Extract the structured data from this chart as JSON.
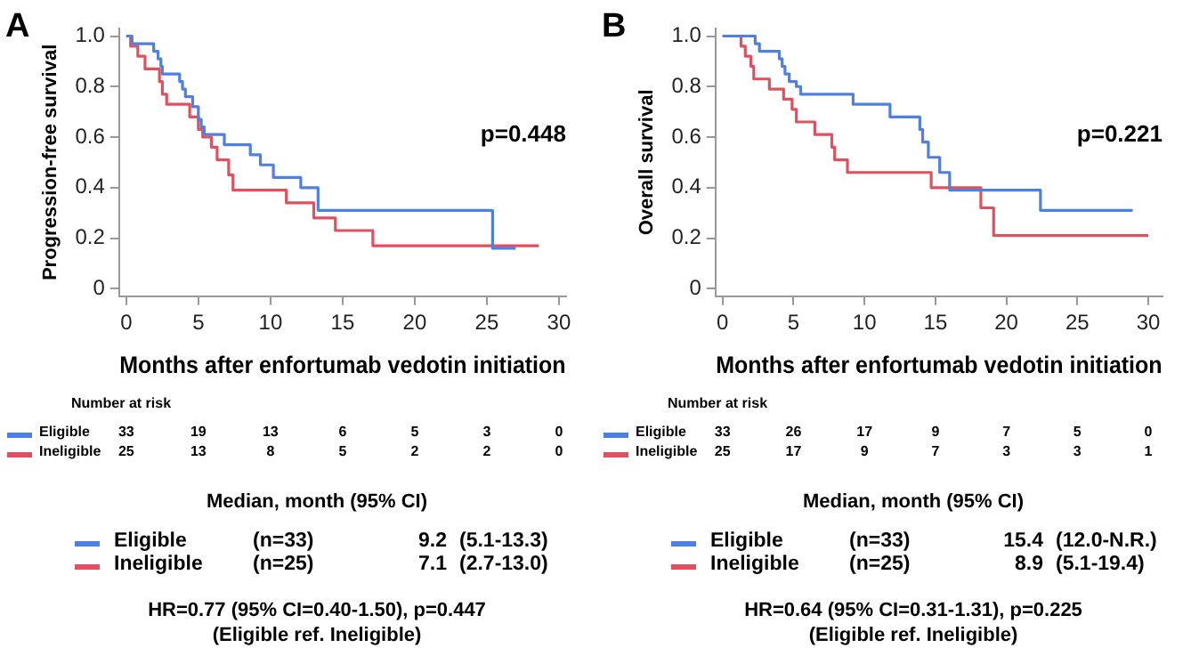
{
  "chart_data": [
    {
      "type": "step",
      "title": "A",
      "legend": "bottom left",
      "xlabel": "Months after enfortumab vedotin initiation",
      "ylabel": "Progression-free survival",
      "xlim": [
        -0.5,
        30.5
      ],
      "xticks": [
        0,
        5,
        10,
        15,
        20,
        25,
        30
      ],
      "ylim": [
        -0.03,
        1.03
      ],
      "yticks": [
        {
          "value": 0,
          "label": "0"
        },
        {
          "value": 0.2,
          "label": "0.2"
        },
        {
          "value": 0.4,
          "label": "0.4"
        },
        {
          "value": 0.6,
          "label": "0.6"
        },
        {
          "value": 0.8,
          "label": "0.8"
        },
        {
          "value": 1,
          "label": "1.0"
        }
      ],
      "series": [
        {
          "name": "Eligible",
          "color": "#4f7fe0",
          "x": [
            0,
            0.4,
            1.9,
            2.2,
            2.4,
            2.5,
            3.7,
            3.9,
            4.1,
            4.6,
            5.0,
            5.2,
            5.4,
            6.8,
            8.6,
            9.3,
            10.2,
            12.1,
            13.3,
            25.4,
            27.0
          ],
          "values": [
            1.0,
            0.97,
            0.94,
            0.91,
            0.88,
            0.85,
            0.82,
            0.79,
            0.76,
            0.72,
            0.67,
            0.64,
            0.61,
            0.57,
            0.53,
            0.49,
            0.44,
            0.4,
            0.31,
            0.16,
            0.16
          ]
        },
        {
          "name": "Ineligible",
          "color": "#e0505e",
          "x": [
            0,
            0.3,
            0.8,
            1.3,
            2.3,
            2.5,
            2.8,
            4.4,
            5.0,
            5.3,
            5.9,
            6.3,
            7.1,
            7.4,
            11.1,
            13.0,
            14.5,
            17.1,
            28.6
          ],
          "values": [
            1.0,
            0.96,
            0.92,
            0.87,
            0.82,
            0.77,
            0.73,
            0.68,
            0.63,
            0.6,
            0.56,
            0.51,
            0.45,
            0.39,
            0.34,
            0.28,
            0.23,
            0.17,
            0.17
          ]
        }
      ],
      "annotations": [
        "p=0.448",
        "Number at risk",
        "33 19 13 6 5 3 0",
        "25 13 8 5 2 2 0",
        "Median, month (95% CI)",
        "(n=33)",
        "9.2",
        "(5.1-13.3)",
        "(n=25)",
        "7.1",
        "(2.7-13.0)",
        "HR=0.77 (95% CI=0.40-1.50), p=0.447",
        "(Eligible ref. Ineligible)"
      ]
    },
    {
      "type": "step",
      "title": "B",
      "legend": "bottom left",
      "xlabel": "Months after enfortumab vedotin initiation",
      "ylabel": "Overall survival",
      "xlim": [
        -0.5,
        31
      ],
      "xticks": [
        0,
        5,
        10,
        15,
        20,
        25,
        30
      ],
      "ylim": [
        -0.03,
        1.03
      ],
      "yticks": [
        {
          "value": 0,
          "label": "0"
        },
        {
          "value": 0.2,
          "label": "0.2"
        },
        {
          "value": 0.4,
          "label": "0.4"
        },
        {
          "value": 0.6,
          "label": "0.6"
        },
        {
          "value": 0.8,
          "label": "0.8"
        },
        {
          "value": 1,
          "label": "1.0"
        }
      ],
      "series": [
        {
          "name": "Eligible",
          "color": "#4f7fe0",
          "x": [
            0,
            2.3,
            2.6,
            4.0,
            4.2,
            4.4,
            4.7,
            5.2,
            5.5,
            9.2,
            11.8,
            13.9,
            14.1,
            14.5,
            15.3,
            16.0,
            22.4,
            28.9
          ],
          "values": [
            1.0,
            0.97,
            0.94,
            0.91,
            0.88,
            0.85,
            0.82,
            0.8,
            0.77,
            0.73,
            0.68,
            0.63,
            0.58,
            0.52,
            0.46,
            0.39,
            0.31,
            0.31
          ]
        },
        {
          "name": "Ineligible",
          "color": "#e0505e",
          "x": [
            0,
            1.3,
            1.6,
            2.0,
            2.2,
            3.3,
            4.3,
            4.9,
            5.2,
            6.5,
            7.7,
            7.9,
            8.8,
            14.7,
            18.2,
            19.1,
            30.0
          ],
          "values": [
            1.0,
            0.96,
            0.92,
            0.88,
            0.83,
            0.79,
            0.75,
            0.71,
            0.66,
            0.61,
            0.56,
            0.51,
            0.46,
            0.4,
            0.32,
            0.21,
            0.21
          ]
        }
      ],
      "annotations": [
        "p=0.221",
        "Number at risk",
        "33 26 17 9 7 5 0",
        "25 17 9 7 3 3 1",
        "Median, month (95% CI)",
        "(n=33)",
        "15.4",
        "(12.0-N.R.)",
        "(n=25)",
        "8.9",
        "(5.1-19.4)",
        "HR=0.64 (95% CI=0.31-1.31), p=0.225",
        "(Eligible ref. Ineligible)"
      ]
    }
  ]
}
